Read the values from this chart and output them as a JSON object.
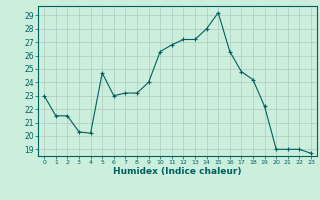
{
  "x": [
    0,
    1,
    2,
    3,
    4,
    5,
    6,
    7,
    8,
    9,
    10,
    11,
    12,
    13,
    14,
    15,
    16,
    17,
    18,
    19,
    20,
    21,
    22,
    23
  ],
  "y": [
    23.0,
    21.5,
    21.5,
    20.3,
    20.2,
    24.7,
    23.0,
    23.2,
    23.2,
    24.0,
    26.3,
    26.8,
    27.2,
    27.2,
    28.0,
    29.2,
    26.3,
    24.8,
    24.2,
    22.2,
    19.0,
    19.0,
    19.0,
    18.7
  ],
  "xlim": [
    -0.5,
    23.5
  ],
  "ylim": [
    18.5,
    29.7
  ],
  "yticks": [
    19,
    20,
    21,
    22,
    23,
    24,
    25,
    26,
    27,
    28,
    29
  ],
  "xticks": [
    0,
    1,
    2,
    3,
    4,
    5,
    6,
    7,
    8,
    9,
    10,
    11,
    12,
    13,
    14,
    15,
    16,
    17,
    18,
    19,
    20,
    21,
    22,
    23
  ],
  "xlabel": "Humidex (Indice chaleur)",
  "line_color": "#006060",
  "marker": "+",
  "bg_color": "#cceedd",
  "grid_color": "#b0c8c0",
  "tick_color": "#006060",
  "label_color": "#006060"
}
